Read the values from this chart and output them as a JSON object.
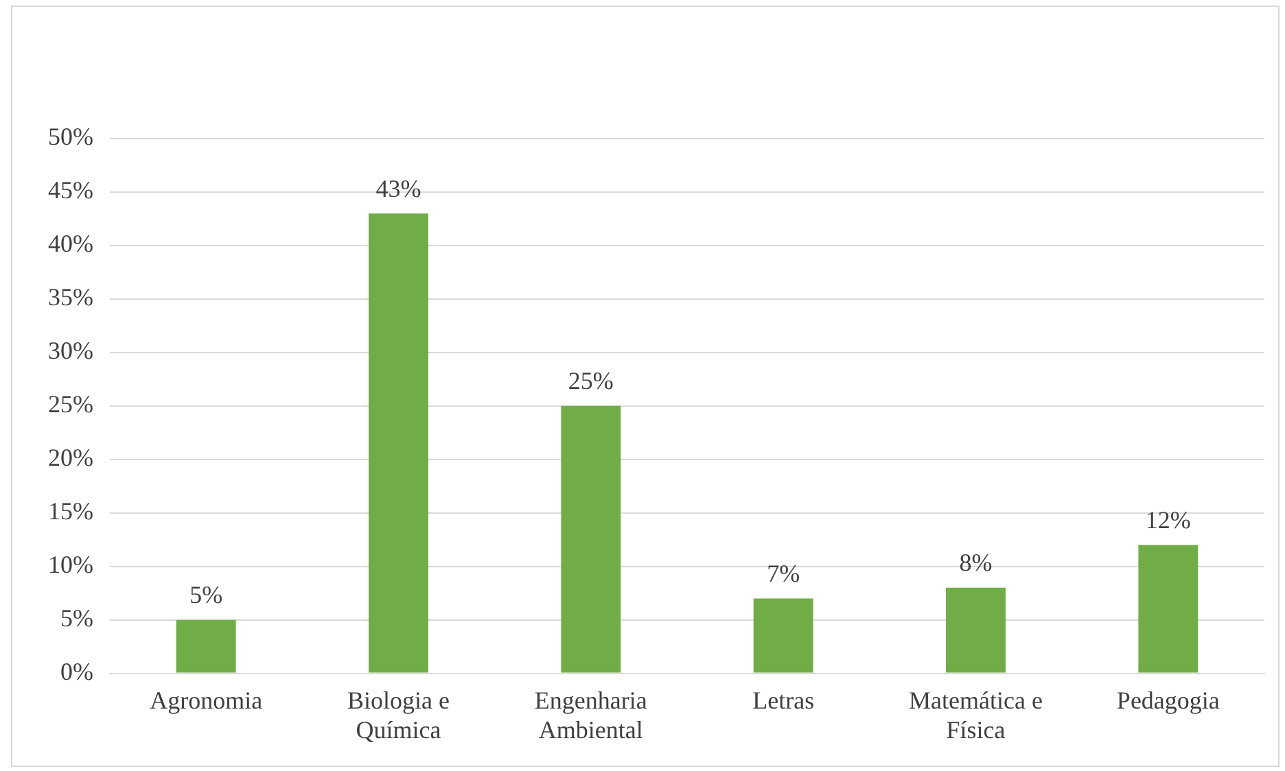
{
  "chart_data": {
    "type": "bar",
    "categories": [
      "Agronomia",
      "Biologia e Química",
      "Engenharia Ambiental",
      "Letras",
      "Matemática e Física",
      "Pedagogia"
    ],
    "values": [
      5,
      43,
      25,
      7,
      8,
      12
    ],
    "color": "#70ad47",
    "value_labels": [
      "5%",
      "43%",
      "25%",
      "7%",
      "8%",
      "12%"
    ],
    "ylim": [
      0,
      50
    ],
    "yticks": [
      {
        "value": 0,
        "label": "0%"
      },
      {
        "value": 5,
        "label": "5%"
      },
      {
        "value": 10,
        "label": "10%"
      },
      {
        "value": 15,
        "label": "15%"
      },
      {
        "value": 20,
        "label": "20%"
      },
      {
        "value": 25,
        "label": "25%"
      },
      {
        "value": 30,
        "label": "30%"
      },
      {
        "value": 35,
        "label": "35%"
      },
      {
        "value": 40,
        "label": "40%"
      },
      {
        "value": 45,
        "label": "45%"
      },
      {
        "value": 50,
        "label": "50%"
      }
    ],
    "grid": "y",
    "legend": false
  }
}
